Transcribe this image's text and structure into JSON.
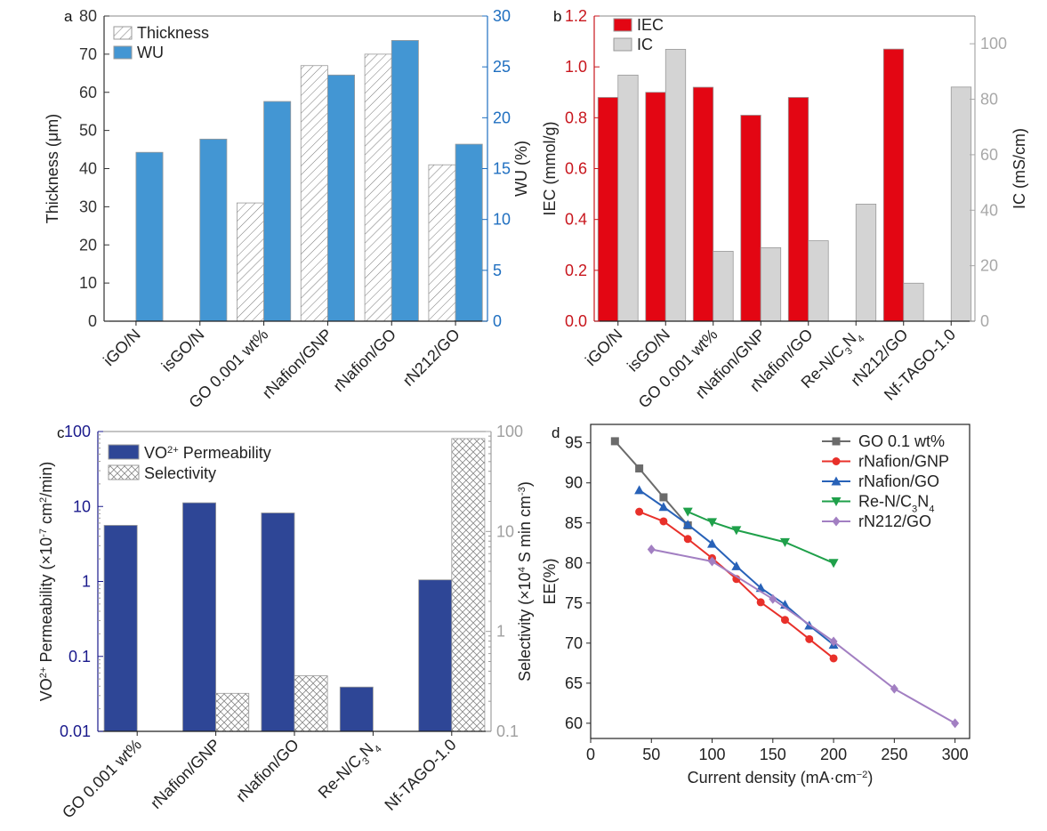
{
  "chart_data": [
    {
      "panel": "a",
      "type": "bar",
      "categories": [
        "iGO/N",
        "isGO/N",
        "GO 0.001 wt%",
        "rNafion/GNP",
        "rNafion/GO",
        "rN212/GO"
      ],
      "series": [
        {
          "name": "Thickness",
          "axis": "left",
          "fill": "hatch",
          "values": [
            null,
            null,
            31,
            67,
            70,
            41
          ]
        },
        {
          "name": "WU",
          "axis": "right",
          "fill": "#4396d3",
          "values": [
            16.6,
            17.9,
            21.6,
            24.2,
            27.6,
            17.4
          ]
        }
      ],
      "ylabel": "Thickness (μm)",
      "ylim": [
        0,
        80
      ],
      "yticks": [
        0,
        10,
        20,
        30,
        40,
        50,
        60,
        70,
        80
      ],
      "y2label": "WU (%)",
      "y2lim": [
        0,
        30
      ],
      "y2ticks": [
        0,
        5,
        10,
        15,
        20,
        25,
        30
      ],
      "y2color": "#1f6fc0",
      "legend": "top-left"
    },
    {
      "panel": "b",
      "type": "bar",
      "categories": [
        "iGO/N",
        "isGO/N",
        "GO 0.001 wt%",
        "rNafion/GNP",
        "rNafion/GO",
        "Re-N/C_{3}N_{4}",
        "rN212/GO",
        "Nf-TAGO-1.0"
      ],
      "series": [
        {
          "name": "IEC",
          "axis": "left",
          "fill": "#e30613",
          "values": [
            0.88,
            0.9,
            0.92,
            0.81,
            0.88,
            null,
            1.07,
            null
          ]
        },
        {
          "name": "IC",
          "axis": "right",
          "fill": "#d4d4d4",
          "values": [
            88.7,
            98,
            25.2,
            26.5,
            29,
            42.2,
            13.7,
            84.4
          ]
        }
      ],
      "ylabel": "IEC (mmol/g)",
      "ylim": [
        0,
        1.2
      ],
      "yticks": [
        "0.0",
        "0.2",
        "0.4",
        "0.6",
        "0.8",
        "1.0",
        "1.2"
      ],
      "ycolor": "#c8161d",
      "y2label": "IC (mS/cm)",
      "y2lim": [
        0,
        110
      ],
      "y2ticks": [
        0,
        20,
        40,
        60,
        80,
        100
      ],
      "y2color": "#a8a8a8",
      "legend": "top-left"
    },
    {
      "panel": "c",
      "type": "bar",
      "scale": "log",
      "categories": [
        "GO 0.001 wt%",
        "rNafion/GNP",
        "rNafion/GO",
        "Re-N/C_{3}N_{4}",
        "Nf-TAGO-1.0"
      ],
      "series": [
        {
          "name": "VO^{2+} Permeability",
          "axis": "left",
          "fill": "#2e4696",
          "values": [
            5.6,
            11.2,
            8.2,
            0.039,
            1.05
          ]
        },
        {
          "name": "Selectivity",
          "axis": "right",
          "fill": "crosshatch",
          "values": [
            null,
            0.24,
            0.36,
            null,
            85
          ]
        }
      ],
      "ylabel": "VO^{2+} Permeability (×10^{-7} cm^{2}/min)",
      "ylim": [
        0.01,
        100
      ],
      "yticks": [
        "0.01",
        "0.1",
        "1",
        "10",
        "100"
      ],
      "ycolor": "#1a1a8c",
      "y2label": "Selectivity (×10^{4} S min cm^{-3})",
      "y2lim": [
        0.1,
        100
      ],
      "y2ticks": [
        "0.1",
        "1",
        "10",
        "100"
      ],
      "y2color": "#a0a0a0",
      "legend": "top-left"
    },
    {
      "panel": "d",
      "type": "line",
      "xlabel": "Current density (mA·cm^{−2})",
      "ylabel": "EE(%)",
      "xlim": [
        0,
        312
      ],
      "ylim": [
        58.1,
        97.3
      ],
      "xticks": [
        0,
        50,
        100,
        150,
        200,
        250,
        300
      ],
      "yticks": [
        60,
        65,
        70,
        75,
        80,
        85,
        90,
        95
      ],
      "legend": "top-right",
      "series": [
        {
          "name": "GO 0.1 wt%",
          "color": "#6b6b6b",
          "marker": "square",
          "x": [
            20,
            40,
            60,
            80
          ],
          "y": [
            95.2,
            91.8,
            88.2,
            84.7
          ]
        },
        {
          "name": "rNafion/GNP",
          "color": "#e8302a",
          "marker": "circle",
          "x": [
            40,
            60,
            80,
            100,
            120,
            140,
            160,
            180,
            200
          ],
          "y": [
            86.4,
            85.2,
            83.0,
            80.6,
            78.0,
            75.1,
            72.9,
            70.5,
            68.1
          ]
        },
        {
          "name": "rNafion/GO",
          "color": "#2862b8",
          "marker": "triangle-up",
          "x": [
            40,
            60,
            80,
            100,
            120,
            140,
            160,
            180,
            200
          ],
          "y": [
            89.1,
            87.0,
            84.8,
            82.4,
            79.6,
            76.9,
            74.8,
            72.2,
            69.8
          ]
        },
        {
          "name": "Re-N/C_{3}N_{4}",
          "color": "#1fa04a",
          "marker": "triangle-down",
          "x": [
            80,
            100,
            120,
            160,
            200
          ],
          "y": [
            86.4,
            85.1,
            84.1,
            82.6,
            80.0
          ]
        },
        {
          "name": "rN212/GO",
          "color": "#a27fc2",
          "marker": "diamond",
          "x": [
            50,
            100,
            150,
            200,
            250,
            300
          ],
          "y": [
            81.7,
            80.2,
            75.5,
            70.2,
            64.3,
            60.0
          ]
        }
      ]
    }
  ]
}
